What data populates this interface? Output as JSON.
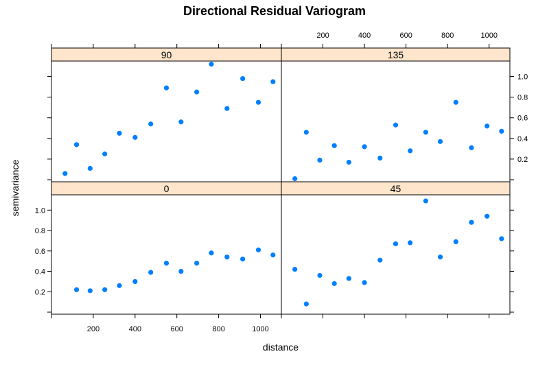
{
  "chart_data": {
    "type": "scatter",
    "title": "Directional Residual Variogram",
    "xlabel": "distance",
    "ylabel": "semivariance",
    "xlim": [
      0,
      1100
    ],
    "ylim": [
      -0.02,
      1.15
    ],
    "x_ticks": [
      200,
      400,
      600,
      800,
      1000
    ],
    "y_ticks": [
      0.2,
      0.4,
      0.6,
      0.8,
      1.0
    ],
    "y_tick_labels": [
      "0.2",
      "0.4",
      "0.6",
      "0.8",
      "1.0"
    ],
    "grid": false,
    "legend": "none",
    "colors": {
      "points": "#0080ff",
      "strip": "#ffe5cc",
      "frame": "#000000"
    },
    "panels": [
      {
        "label": "90",
        "points": [
          {
            "x": 65,
            "y": 0.06
          },
          {
            "x": 120,
            "y": 0.34
          },
          {
            "x": 185,
            "y": 0.11
          },
          {
            "x": 255,
            "y": 0.25
          },
          {
            "x": 325,
            "y": 0.45
          },
          {
            "x": 400,
            "y": 0.41
          },
          {
            "x": 475,
            "y": 0.54
          },
          {
            "x": 550,
            "y": 0.89
          },
          {
            "x": 620,
            "y": 0.56
          },
          {
            "x": 695,
            "y": 0.85
          },
          {
            "x": 765,
            "y": 1.12
          },
          {
            "x": 840,
            "y": 0.69
          },
          {
            "x": 915,
            "y": 0.98
          },
          {
            "x": 990,
            "y": 0.75
          },
          {
            "x": 1060,
            "y": 0.95
          }
        ]
      },
      {
        "label": "135",
        "points": [
          {
            "x": 65,
            "y": 0.01
          },
          {
            "x": 120,
            "y": 0.46
          },
          {
            "x": 185,
            "y": 0.19
          },
          {
            "x": 255,
            "y": 0.33
          },
          {
            "x": 325,
            "y": 0.17
          },
          {
            "x": 400,
            "y": 0.32
          },
          {
            "x": 475,
            "y": 0.21
          },
          {
            "x": 550,
            "y": 0.53
          },
          {
            "x": 620,
            "y": 0.28
          },
          {
            "x": 695,
            "y": 0.46
          },
          {
            "x": 765,
            "y": 0.37
          },
          {
            "x": 840,
            "y": 0.75
          },
          {
            "x": 915,
            "y": 0.31
          },
          {
            "x": 990,
            "y": 0.52
          },
          {
            "x": 1060,
            "y": 0.47
          }
        ]
      },
      {
        "label": "0",
        "points": [
          {
            "x": 120,
            "y": 0.22
          },
          {
            "x": 185,
            "y": 0.21
          },
          {
            "x": 255,
            "y": 0.22
          },
          {
            "x": 325,
            "y": 0.26
          },
          {
            "x": 400,
            "y": 0.3
          },
          {
            "x": 475,
            "y": 0.39
          },
          {
            "x": 550,
            "y": 0.48
          },
          {
            "x": 620,
            "y": 0.4
          },
          {
            "x": 695,
            "y": 0.48
          },
          {
            "x": 765,
            "y": 0.58
          },
          {
            "x": 840,
            "y": 0.54
          },
          {
            "x": 915,
            "y": 0.52
          },
          {
            "x": 990,
            "y": 0.61
          },
          {
            "x": 1060,
            "y": 0.56
          }
        ]
      },
      {
        "label": "45",
        "points": [
          {
            "x": 65,
            "y": 0.42
          },
          {
            "x": 120,
            "y": 0.08
          },
          {
            "x": 185,
            "y": 0.36
          },
          {
            "x": 255,
            "y": 0.28
          },
          {
            "x": 325,
            "y": 0.33
          },
          {
            "x": 400,
            "y": 0.29
          },
          {
            "x": 475,
            "y": 0.51
          },
          {
            "x": 550,
            "y": 0.67
          },
          {
            "x": 620,
            "y": 0.68
          },
          {
            "x": 695,
            "y": 1.09
          },
          {
            "x": 765,
            "y": 0.54
          },
          {
            "x": 840,
            "y": 0.69
          },
          {
            "x": 915,
            "y": 0.88
          },
          {
            "x": 990,
            "y": 0.94
          },
          {
            "x": 1060,
            "y": 0.72
          }
        ]
      }
    ]
  }
}
